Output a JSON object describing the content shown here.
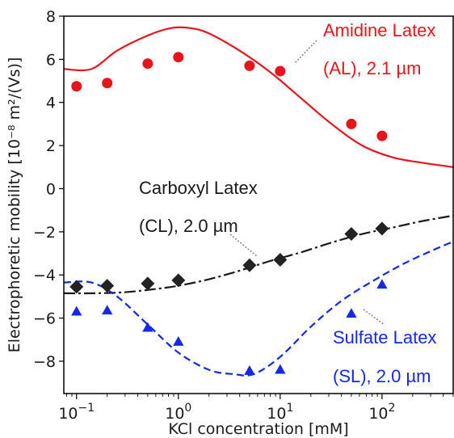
{
  "chart_data": {
    "type": "line",
    "xlabel": "KCl concentration [mM]",
    "ylabel": "Electrophoretic mobility [10⁻⁸ m²/(Vs)]",
    "xscale": "log",
    "xlim": [
      0.075,
      500
    ],
    "ylim": [
      -9.5,
      8
    ],
    "x_ticks": [
      {
        "value": 0.1,
        "label": "10",
        "exp": "−1"
      },
      {
        "value": 1,
        "label": "10",
        "exp": "0"
      },
      {
        "value": 10,
        "label": "10",
        "exp": "1"
      },
      {
        "value": 100,
        "label": "10",
        "exp": "2"
      }
    ],
    "y_ticks": [
      {
        "value": 8,
        "label": "8"
      },
      {
        "value": 6,
        "label": "6"
      },
      {
        "value": 4,
        "label": "4"
      },
      {
        "value": 2,
        "label": "2"
      },
      {
        "value": 0,
        "label": "0"
      },
      {
        "value": -2,
        "label": "−2"
      },
      {
        "value": -4,
        "label": "−4"
      },
      {
        "value": -6,
        "label": "−6"
      },
      {
        "value": -8,
        "label": "−8"
      }
    ],
    "series": [
      {
        "name": "Amidine Latex (AL), 2.1 µm",
        "color": "#e8141c",
        "marker": "circle",
        "points": [
          [
            0.1,
            4.75
          ],
          [
            0.2,
            4.9
          ],
          [
            0.5,
            5.8
          ],
          [
            1,
            6.1
          ],
          [
            5,
            5.7
          ],
          [
            10,
            5.45
          ],
          [
            50,
            3.0
          ],
          [
            100,
            2.45
          ]
        ],
        "curve": [
          [
            0.075,
            5.55
          ],
          [
            0.14,
            5.55
          ],
          [
            0.25,
            6.4
          ],
          [
            0.5,
            7.1
          ],
          [
            0.85,
            7.45
          ],
          [
            1.3,
            7.45
          ],
          [
            2,
            7.2
          ],
          [
            4,
            6.4
          ],
          [
            8,
            5.4
          ],
          [
            16,
            4.2
          ],
          [
            32,
            3.0
          ],
          [
            64,
            2.0
          ],
          [
            128,
            1.45
          ],
          [
            250,
            1.2
          ],
          [
            500,
            1.0
          ]
        ]
      },
      {
        "name": "Carboxyl Latex (CL), 2.0 µm",
        "color": "#000000",
        "marker": "diamond",
        "points": [
          [
            0.1,
            -4.55
          ],
          [
            0.2,
            -4.5
          ],
          [
            0.5,
            -4.4
          ],
          [
            1,
            -4.25
          ],
          [
            5,
            -3.55
          ],
          [
            10,
            -3.3
          ],
          [
            50,
            -2.1
          ],
          [
            100,
            -1.85
          ]
        ],
        "curve": [
          [
            0.075,
            -4.85
          ],
          [
            0.15,
            -4.85
          ],
          [
            0.3,
            -4.8
          ],
          [
            0.6,
            -4.65
          ],
          [
            1,
            -4.5
          ],
          [
            2,
            -4.2
          ],
          [
            4,
            -3.8
          ],
          [
            8,
            -3.35
          ],
          [
            16,
            -2.95
          ],
          [
            32,
            -2.5
          ],
          [
            64,
            -2.1
          ],
          [
            128,
            -1.8
          ],
          [
            250,
            -1.5
          ],
          [
            500,
            -1.25
          ]
        ]
      },
      {
        "name": "Sulfate Latex (SL), 2.0 µm",
        "color": "#1428e6",
        "marker": "triangle",
        "points": [
          [
            0.1,
            -5.7
          ],
          [
            0.2,
            -5.65
          ],
          [
            0.5,
            -6.45
          ],
          [
            1,
            -7.1
          ],
          [
            5,
            -8.45
          ],
          [
            10,
            -8.4
          ],
          [
            50,
            -5.8
          ],
          [
            100,
            -4.45
          ]
        ],
        "curve": [
          [
            0.075,
            -4.35
          ],
          [
            0.14,
            -4.35
          ],
          [
            0.25,
            -5.0
          ],
          [
            0.5,
            -6.3
          ],
          [
            1,
            -7.6
          ],
          [
            2,
            -8.4
          ],
          [
            3.5,
            -8.6
          ],
          [
            5.5,
            -8.6
          ],
          [
            10,
            -7.8
          ],
          [
            20,
            -6.4
          ],
          [
            40,
            -5.2
          ],
          [
            80,
            -4.3
          ],
          [
            160,
            -3.5
          ],
          [
            300,
            -2.9
          ],
          [
            500,
            -2.45
          ]
        ]
      }
    ],
    "annotations": [
      {
        "line1": "Amidine Latex",
        "line2": "(AL), 2.1 µm",
        "color": "#e8141c"
      },
      {
        "line1": "Carboxyl Latex",
        "line2": "(CL), 2.0 µm",
        "color": "#1a1a1a"
      },
      {
        "line1": "Sulfate Latex",
        "line2": "(SL), 2.0 µm",
        "color": "#1428e6"
      }
    ]
  }
}
